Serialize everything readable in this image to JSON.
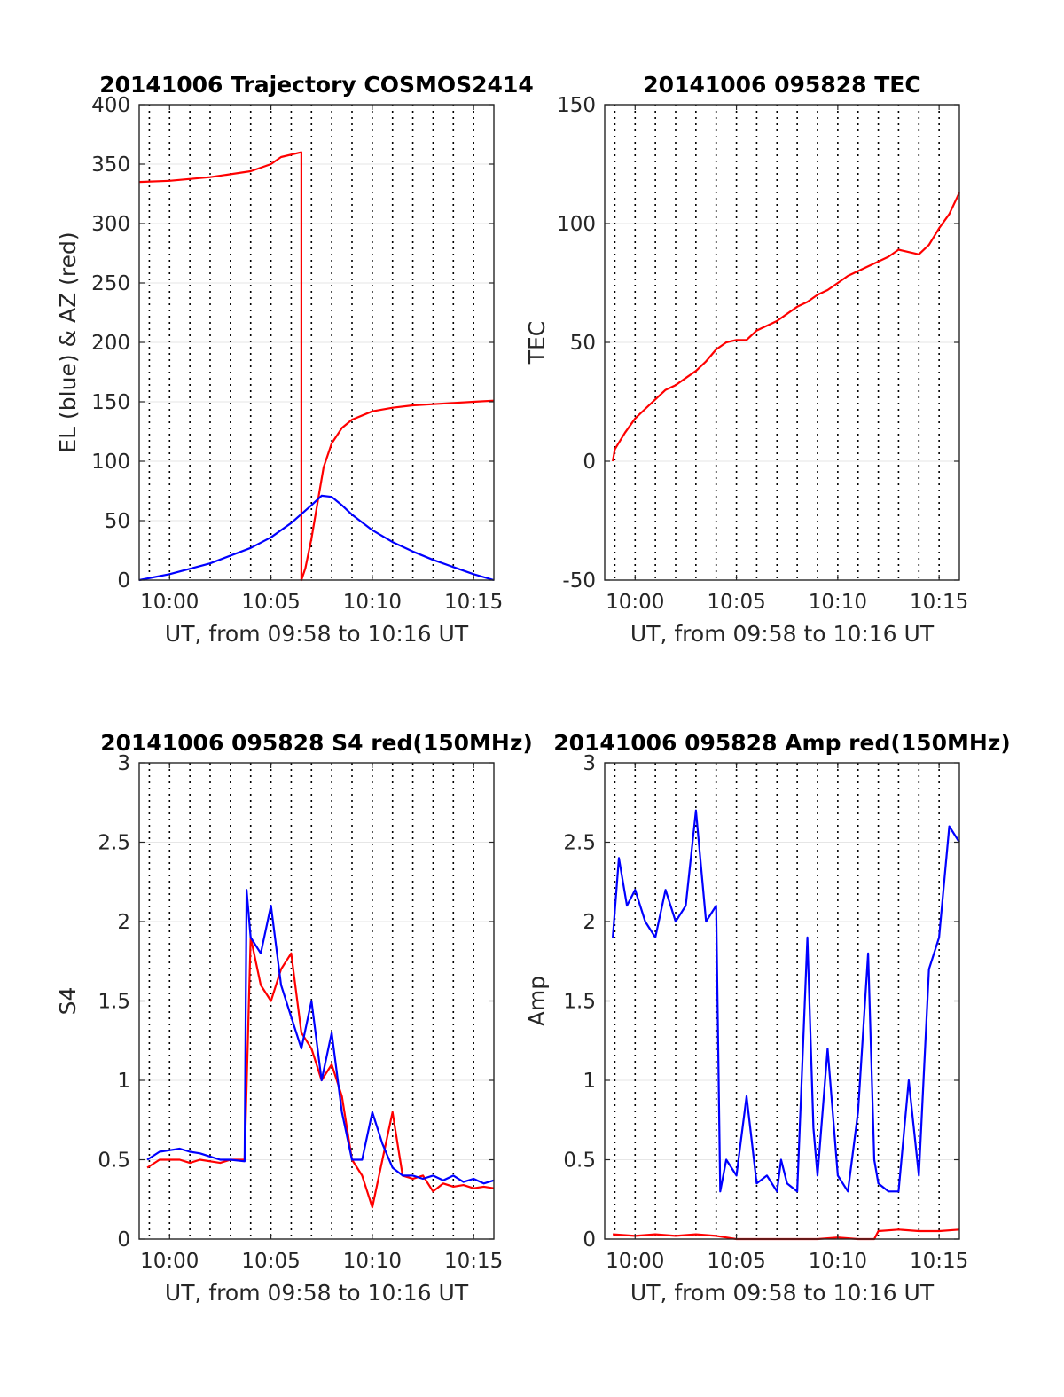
{
  "figure": {
    "background": "#ffffff"
  },
  "chart_data": [
    {
      "type": "line",
      "title": "20141006 Trajectory COSMOS2414",
      "xlabel": "UT, from 09:58 to 10:16 UT",
      "ylabel": "EL (blue) & AZ (red)",
      "x_unit": "minutes after 09:58 UT",
      "xlim": [
        0.5,
        18
      ],
      "ylim": [
        0,
        400
      ],
      "yticks": [
        0,
        50,
        100,
        150,
        200,
        250,
        300,
        350,
        400
      ],
      "xticks": [
        2,
        7,
        12,
        17
      ],
      "xtick_labels": [
        "10:00",
        "10:05",
        "10:10",
        "10:15"
      ],
      "vgrid_minutes": [
        1,
        2,
        3,
        4,
        5,
        6,
        7,
        8,
        9,
        10,
        11,
        12,
        13,
        14,
        15,
        16,
        17
      ],
      "grid": true,
      "series": [
        {
          "color": "#ff0000",
          "x": [
            0.5,
            2,
            4,
            6,
            7,
            7.5,
            8.5,
            8.5,
            8.7,
            9,
            9.3,
            9.6,
            10,
            10.5,
            11,
            12,
            13,
            14,
            15,
            16,
            17,
            18
          ],
          "values": [
            335,
            336,
            339,
            344,
            350,
            356,
            360,
            0,
            10,
            35,
            65,
            95,
            115,
            128,
            135,
            142,
            145,
            147,
            148,
            149,
            150,
            151
          ]
        },
        {
          "color": "#0000ff",
          "x": [
            0.5,
            2,
            4,
            6,
            7,
            8,
            9,
            9.5,
            10,
            10.5,
            11,
            12,
            13,
            14,
            15,
            16,
            17,
            18
          ],
          "values": [
            0,
            5,
            14,
            27,
            36,
            48,
            63,
            71,
            70,
            63,
            55,
            42,
            32,
            24,
            17,
            11,
            5,
            0
          ]
        }
      ]
    },
    {
      "type": "line",
      "title": "20141006 095828 TEC",
      "xlabel": "UT, from 09:58 to 10:16 UT",
      "ylabel": "TEC",
      "x_unit": "minutes after 09:58 UT",
      "xlim": [
        0.5,
        18
      ],
      "ylim": [
        -50,
        150
      ],
      "yticks": [
        -50,
        0,
        50,
        100,
        150
      ],
      "xticks": [
        2,
        7,
        12,
        17
      ],
      "xtick_labels": [
        "10:00",
        "10:05",
        "10:10",
        "10:15"
      ],
      "vgrid_minutes": [
        1,
        2,
        3,
        4,
        5,
        6,
        7,
        8,
        9,
        10,
        11,
        12,
        13,
        14,
        15,
        16,
        17
      ],
      "grid": true,
      "series": [
        {
          "color": "#ff0000",
          "x": [
            0.9,
            1,
            1.5,
            2,
            2.5,
            3,
            3.5,
            4,
            4.5,
            5,
            5.5,
            6,
            6.5,
            7,
            7.5,
            8,
            8.5,
            9,
            9.5,
            10,
            10.5,
            11,
            11.5,
            12,
            12.5,
            13,
            13.5,
            14,
            14.5,
            15,
            15.5,
            16,
            16.5,
            17,
            17.5,
            18
          ],
          "values": [
            0,
            5,
            12,
            18,
            22,
            26,
            30,
            32,
            35,
            38,
            42,
            47,
            50,
            51,
            51,
            55,
            57,
            59,
            62,
            65,
            67,
            70,
            72,
            75,
            78,
            80,
            82,
            84,
            86,
            89,
            88,
            87,
            91,
            98,
            104,
            113
          ]
        }
      ]
    },
    {
      "type": "line",
      "title": "20141006 095828 S4 red(150MHz)",
      "xlabel": "UT, from 09:58 to 10:16 UT",
      "ylabel": "S4",
      "x_unit": "minutes after 09:58 UT",
      "xlim": [
        0.5,
        18
      ],
      "ylim": [
        0,
        3
      ],
      "yticks": [
        0,
        0.5,
        1,
        1.5,
        2,
        2.5,
        3
      ],
      "ytick_labels": [
        "0",
        "0.5",
        "1",
        "1.5",
        "2",
        "2.5",
        "3"
      ],
      "xticks": [
        2,
        7,
        12,
        17
      ],
      "xtick_labels": [
        "10:00",
        "10:05",
        "10:10",
        "10:15"
      ],
      "vgrid_minutes": [
        1,
        2,
        3,
        4,
        5,
        6,
        7,
        8,
        9,
        10,
        11,
        12,
        13,
        14,
        15,
        16,
        17
      ],
      "grid": true,
      "series": [
        {
          "color": "#ff0000",
          "x": [
            0.9,
            1.5,
            2,
            2.5,
            3,
            3.5,
            4,
            4.5,
            5,
            5.7,
            6,
            6.5,
            7,
            7.5,
            8,
            8.5,
            9,
            9.5,
            10,
            10.5,
            11,
            11.5,
            12,
            12.5,
            13,
            13.5,
            14,
            14.5,
            15,
            15.5,
            16,
            16.5,
            17,
            17.5,
            18
          ],
          "values": [
            0.45,
            0.5,
            0.5,
            0.5,
            0.48,
            0.5,
            0.49,
            0.48,
            0.5,
            0.5,
            1.9,
            1.6,
            1.5,
            1.7,
            1.8,
            1.3,
            1.2,
            1.0,
            1.1,
            0.9,
            0.5,
            0.4,
            0.2,
            0.5,
            0.8,
            0.4,
            0.38,
            0.4,
            0.3,
            0.35,
            0.33,
            0.34,
            0.32,
            0.33,
            0.32
          ]
        },
        {
          "color": "#0000ff",
          "x": [
            0.9,
            1.5,
            2,
            2.5,
            3,
            3.5,
            4,
            4.5,
            5,
            5.7,
            5.8,
            6,
            6.5,
            7,
            7.5,
            8,
            8.5,
            9,
            9.5,
            10,
            10.5,
            11,
            11.5,
            12,
            12.5,
            13,
            13.5,
            14,
            14.5,
            15,
            15.5,
            16,
            16.5,
            17,
            17.5,
            18
          ],
          "values": [
            0.5,
            0.55,
            0.56,
            0.57,
            0.55,
            0.54,
            0.52,
            0.5,
            0.5,
            0.49,
            2.2,
            1.9,
            1.8,
            2.1,
            1.6,
            1.4,
            1.2,
            1.5,
            1.0,
            1.3,
            0.8,
            0.5,
            0.5,
            0.8,
            0.6,
            0.45,
            0.4,
            0.4,
            0.38,
            0.4,
            0.37,
            0.4,
            0.36,
            0.38,
            0.35,
            0.37
          ]
        }
      ]
    },
    {
      "type": "line",
      "title": "20141006 095828 Amp red(150MHz)",
      "xlabel": "UT, from 09:58 to 10:16 UT",
      "ylabel": "Amp",
      "x_unit": "minutes after 09:58 UT",
      "xlim": [
        0.5,
        18
      ],
      "ylim": [
        0,
        3
      ],
      "yticks": [
        0,
        0.5,
        1,
        1.5,
        2,
        2.5,
        3
      ],
      "ytick_labels": [
        "0",
        "0.5",
        "1",
        "1.5",
        "2",
        "2.5",
        "3"
      ],
      "xticks": [
        2,
        7,
        12,
        17
      ],
      "xtick_labels": [
        "10:00",
        "10:05",
        "10:10",
        "10:15"
      ],
      "vgrid_minutes": [
        1,
        2,
        3,
        4,
        5,
        6,
        7,
        8,
        9,
        10,
        11,
        12,
        13,
        14,
        15,
        16,
        17
      ],
      "grid": true,
      "series": [
        {
          "color": "#ff0000",
          "x": [
            0.9,
            2,
            3,
            4,
            5,
            6,
            6.5,
            7,
            8,
            9,
            10,
            11,
            12,
            13,
            13.8,
            14,
            15,
            16,
            17,
            18
          ],
          "values": [
            0.03,
            0.02,
            0.03,
            0.02,
            0.03,
            0.02,
            0.01,
            0.0,
            0.0,
            0.0,
            0.0,
            0.0,
            0.01,
            0.0,
            0.0,
            0.05,
            0.06,
            0.05,
            0.05,
            0.06
          ]
        },
        {
          "color": "#0000ff",
          "x": [
            0.9,
            1.2,
            1.6,
            2,
            2.5,
            3,
            3.5,
            4,
            4.5,
            5,
            5.5,
            6,
            6.2,
            6.5,
            7,
            7.5,
            8,
            8.5,
            9,
            9.2,
            9.5,
            10,
            10.5,
            10.8,
            11,
            11.5,
            12,
            12.5,
            13,
            13.5,
            13.8,
            14,
            14.5,
            15,
            15.5,
            16,
            16.5,
            17,
            17.5,
            18
          ],
          "values": [
            1.9,
            2.4,
            2.1,
            2.2,
            2.0,
            1.9,
            2.2,
            2.0,
            2.1,
            2.7,
            2.0,
            2.1,
            0.3,
            0.5,
            0.4,
            0.9,
            0.35,
            0.4,
            0.3,
            0.5,
            0.35,
            0.3,
            1.9,
            0.7,
            0.4,
            1.2,
            0.4,
            0.3,
            0.8,
            1.8,
            0.5,
            0.35,
            0.3,
            0.3,
            1.0,
            0.4,
            1.7,
            1.9,
            2.6,
            2.5
          ]
        }
      ]
    }
  ]
}
